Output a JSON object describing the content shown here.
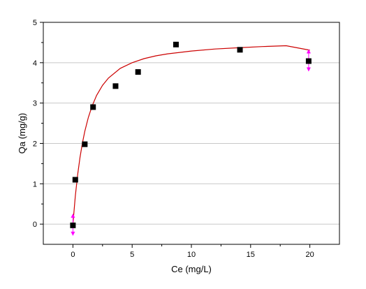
{
  "chart_data": {
    "type": "scatter",
    "xlabel": "Ce (mg/L)",
    "ylabel": "Qa (mg/g)",
    "xlim": [
      -2.5,
      22.5
    ],
    "ylim": [
      -0.5,
      5
    ],
    "xticks": [
      0,
      5,
      10,
      15,
      20
    ],
    "yticks": [
      0,
      1,
      2,
      3,
      4,
      5
    ],
    "grid": "horizontal",
    "series": [
      {
        "type": "scatter",
        "marker": "square",
        "color": "#000000",
        "x": [
          0.0,
          0.2,
          1.0,
          1.7,
          3.6,
          5.5,
          8.7,
          14.1,
          19.9
        ],
        "y": [
          -0.03,
          1.1,
          1.98,
          2.9,
          3.42,
          3.77,
          4.45,
          4.32,
          4.04
        ],
        "error_markers": [
          {
            "x": 0.0,
            "y": -0.03,
            "color": "#ff00ff"
          },
          {
            "x": 19.9,
            "y": 4.04,
            "color": "#ff00ff"
          }
        ]
      },
      {
        "type": "line",
        "color": "#cc0000",
        "x": [
          0.0,
          0.2,
          0.4,
          0.6,
          0.8,
          1.0,
          1.3,
          1.6,
          2.0,
          2.5,
          3.0,
          4.0,
          5.0,
          6.0,
          7.0,
          8.0,
          10.0,
          12.0,
          14.0,
          16.0,
          18.0,
          20.0
        ],
        "y": [
          0.0,
          0.69,
          1.23,
          1.66,
          2.01,
          2.3,
          2.64,
          2.91,
          3.19,
          3.44,
          3.62,
          3.86,
          4.0,
          4.1,
          4.17,
          4.22,
          4.29,
          4.34,
          4.37,
          4.4,
          4.42,
          4.31
        ]
      }
    ]
  }
}
